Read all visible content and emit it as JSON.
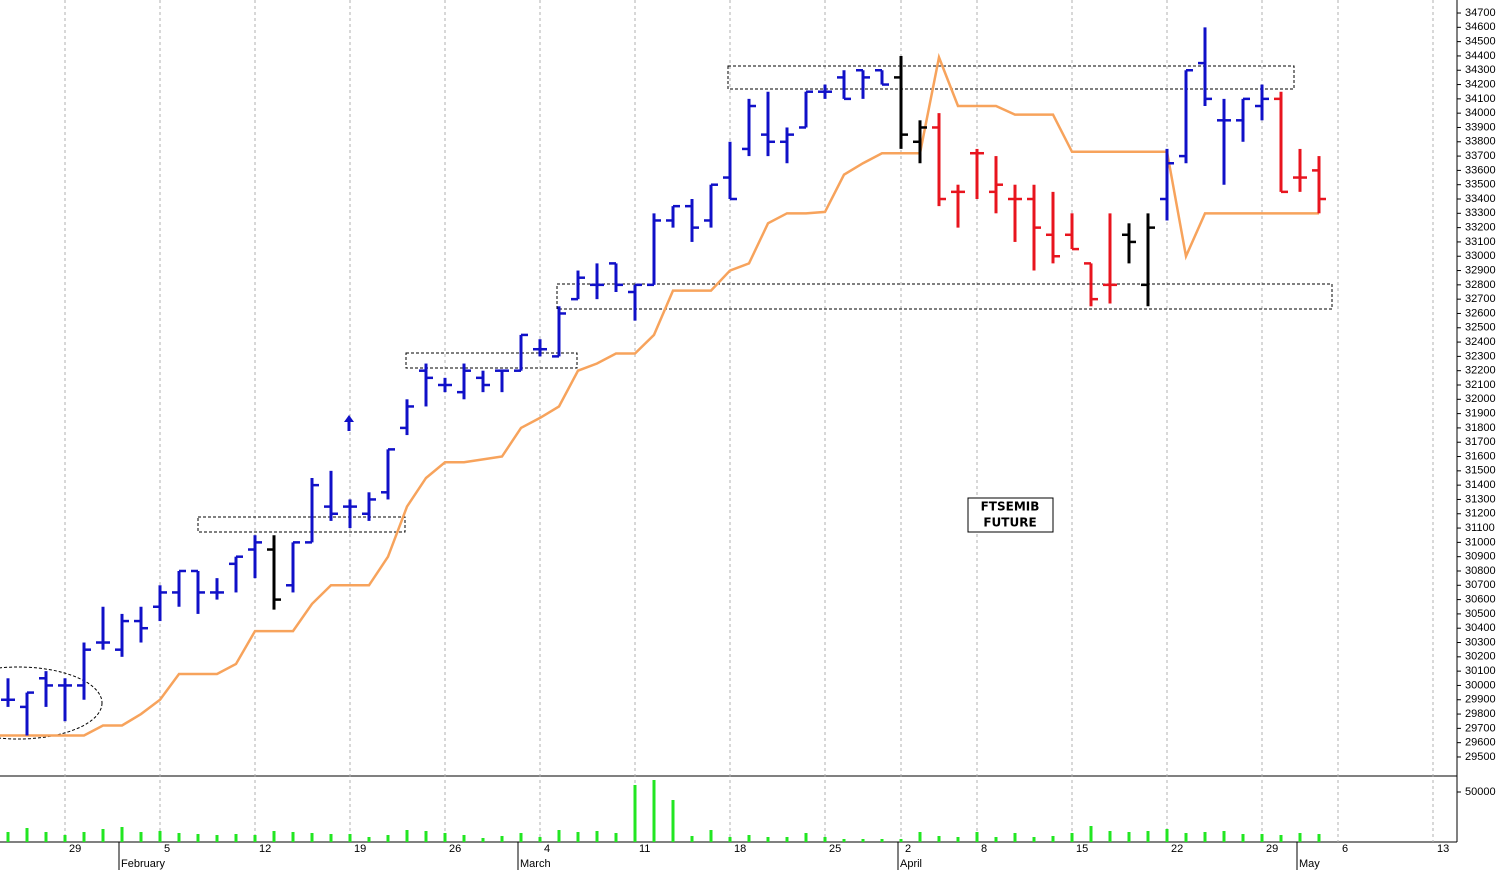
{
  "chart_data": [
    {
      "type": "ohlc",
      "annotation": [
        "FTSEMIB",
        "FUTURE"
      ],
      "categories": [
        null,
        null,
        null,
        "29",
        null,
        null,
        null,
        null,
        "5",
        null,
        null,
        null,
        null,
        "12",
        null,
        null,
        null,
        null,
        "19",
        null,
        null,
        null,
        null,
        "26",
        null,
        null,
        null,
        null,
        "4",
        null,
        null,
        null,
        null,
        "11",
        null,
        null,
        null,
        null,
        "18",
        null,
        null,
        null,
        null,
        "25",
        null,
        null,
        null,
        "2",
        null,
        null,
        null,
        "8",
        null,
        null,
        null,
        null,
        "15",
        null,
        null,
        null,
        null,
        "22",
        null,
        null,
        null,
        null,
        "29",
        null,
        null,
        null,
        "6",
        null,
        null,
        null,
        null,
        "13",
        null
      ],
      "month_labels": [
        null,
        null,
        null,
        null,
        null,
        null,
        "February",
        null,
        null,
        null,
        null,
        null,
        null,
        null,
        null,
        null,
        null,
        null,
        null,
        null,
        null,
        null,
        null,
        null,
        null,
        null,
        null,
        "March",
        null,
        null,
        null,
        null,
        null,
        null,
        null,
        null,
        null,
        null,
        null,
        null,
        null,
        null,
        null,
        null,
        null,
        null,
        null,
        "April",
        null,
        null,
        null,
        null,
        null,
        null,
        null,
        null,
        null,
        null,
        null,
        null,
        null,
        null,
        null,
        null,
        null,
        null,
        null,
        null,
        "May",
        null,
        null,
        null,
        null,
        null,
        null,
        null,
        null
      ],
      "open": [
        29900,
        29850,
        30050,
        30000,
        30000,
        30300,
        30250,
        30450,
        30550,
        30650,
        30800,
        30650,
        30850,
        30950,
        30950,
        30700,
        31000,
        31250,
        31250,
        31200,
        31350,
        31800,
        32200,
        32100,
        32050,
        32150,
        32200,
        32200,
        32350,
        32300,
        32700,
        32800,
        32950,
        32750,
        32800,
        33250,
        33350,
        33250,
        33550,
        33750,
        33850,
        33800,
        33900,
        34150,
        34250,
        34300,
        34300,
        34250,
        33800,
        33900,
        33450,
        33720,
        33450,
        33400,
        33400,
        33150,
        33150,
        32950,
        32800,
        33150,
        32800,
        33400,
        33700,
        34350,
        33950,
        33950,
        34050,
        34100,
        33550,
        33600,
        null,
        null,
        null,
        null,
        null,
        null,
        null
      ],
      "high": [
        30050,
        29950,
        30100,
        30050,
        30300,
        30550,
        30500,
        30550,
        30700,
        30800,
        30800,
        30750,
        30900,
        31050,
        31050,
        31000,
        31450,
        31500,
        31300,
        31350,
        31650,
        32000,
        32250,
        32150,
        32250,
        32200,
        32200,
        32450,
        32420,
        32650,
        32900,
        32950,
        32950,
        32800,
        33300,
        33350,
        33400,
        33500,
        33800,
        34100,
        34150,
        33900,
        34150,
        34200,
        34300,
        34300,
        34300,
        34400,
        33950,
        34000,
        33500,
        33750,
        33700,
        33500,
        33500,
        33450,
        33300,
        32950,
        33300,
        33230,
        33300,
        33750,
        34300,
        34600,
        34100,
        34100,
        34200,
        34150,
        33750,
        33700,
        null,
        null,
        null,
        null,
        null,
        null,
        null
      ],
      "low": [
        29850,
        29650,
        29850,
        29750,
        29900,
        30250,
        30200,
        30300,
        30450,
        30550,
        30500,
        30600,
        30650,
        30750,
        30530,
        30650,
        31000,
        31150,
        31100,
        31150,
        31300,
        31750,
        31950,
        32050,
        32000,
        32050,
        32050,
        32200,
        32300,
        32300,
        32700,
        32700,
        32750,
        32550,
        32800,
        33200,
        33100,
        33200,
        33400,
        33700,
        33700,
        33650,
        33900,
        34100,
        34100,
        34100,
        34200,
        33750,
        33650,
        33350,
        33200,
        33400,
        33300,
        33100,
        32900,
        32950,
        33050,
        32650,
        32670,
        32950,
        32650,
        33250,
        33650,
        34050,
        33500,
        33800,
        33950,
        33450,
        33450,
        33300,
        null,
        null,
        null,
        null,
        null,
        null,
        null
      ],
      "close": [
        29900,
        29950,
        30000,
        30000,
        30250,
        30300,
        30450,
        30400,
        30650,
        30800,
        30650,
        30650,
        30900,
        31000,
        30600,
        31000,
        31400,
        31200,
        31250,
        31300,
        31650,
        31950,
        32150,
        32100,
        32200,
        32100,
        32200,
        32450,
        32350,
        32600,
        32850,
        32800,
        32800,
        32800,
        33250,
        33350,
        33200,
        33500,
        33400,
        34050,
        33800,
        33850,
        34150,
        34150,
        34100,
        34250,
        34200,
        33850,
        33900,
        33400,
        33450,
        33720,
        33500,
        33400,
        33200,
        33000,
        33050,
        32700,
        32800,
        33100,
        33200,
        33650,
        34300,
        34100,
        33950,
        34100,
        34100,
        33450,
        33550,
        33400,
        null,
        null,
        null,
        null,
        null,
        null,
        null
      ],
      "bar_colors": [
        "#1010c8",
        "#1010c8",
        "#1010c8",
        "#1010c8",
        "#1010c8",
        "#1010c8",
        "#1010c8",
        "#1010c8",
        "#1010c8",
        "#1010c8",
        "#1010c8",
        "#1010c8",
        "#1010c8",
        "#1010c8",
        "#000000",
        "#1010c8",
        "#1010c8",
        "#1010c8",
        "#1010c8",
        "#1010c8",
        "#1010c8",
        "#1010c8",
        "#1010c8",
        "#1010c8",
        "#1010c8",
        "#1010c8",
        "#1010c8",
        "#1010c8",
        "#1010c8",
        "#1010c8",
        "#1010c8",
        "#1010c8",
        "#1010c8",
        "#1010c8",
        "#1010c8",
        "#1010c8",
        "#1010c8",
        "#1010c8",
        "#1010c8",
        "#1010c8",
        "#1010c8",
        "#1010c8",
        "#1010c8",
        "#1010c8",
        "#1010c8",
        "#1010c8",
        "#1010c8",
        "#000000",
        "#000000",
        "#e8141e",
        "#e8141e",
        "#e8141e",
        "#e8141e",
        "#e8141e",
        "#e8141e",
        "#e8141e",
        "#e8141e",
        "#e8141e",
        "#e8141e",
        "#000000",
        "#000000",
        "#1010c8",
        "#1010c8",
        "#1010c8",
        "#1010c8",
        "#1010c8",
        "#1010c8",
        "#e8141e",
        "#e8141e",
        "#e8141e",
        null,
        null,
        null,
        null,
        null,
        null,
        null
      ],
      "stop_line": {
        "color": "#f7a35c",
        "values": [
          29650,
          29650,
          29650,
          29650,
          29650,
          29720,
          29720,
          29800,
          29900,
          30080,
          30080,
          30080,
          30150,
          30380,
          30380,
          30380,
          30570,
          30700,
          30700,
          30700,
          30900,
          31250,
          31450,
          31560,
          31560,
          31580,
          31600,
          31800,
          31870,
          31950,
          32200,
          32250,
          32320,
          32320,
          32450,
          32760,
          32760,
          32760,
          32900,
          32950,
          33230,
          33300,
          33300,
          33310,
          33570,
          33650,
          33720,
          33720,
          33720,
          34390,
          34050,
          34050,
          34050,
          33990,
          33990,
          33990,
          33730,
          33730,
          33730,
          33730,
          33730,
          33730,
          33000,
          33300,
          33300,
          33300,
          33300,
          33300,
          33300,
          33300,
          null,
          null,
          null,
          null,
          null,
          null,
          null
        ]
      },
      "ylim": [
        29374,
        34791
      ],
      "yticks": [
        29500,
        29600,
        29700,
        29800,
        29900,
        30000,
        30100,
        30200,
        30300,
        30400,
        30500,
        30600,
        30700,
        30800,
        30900,
        31000,
        31100,
        31200,
        31300,
        31400,
        31500,
        31600,
        31700,
        31800,
        31900,
        32000,
        32100,
        32200,
        32300,
        32400,
        32500,
        32600,
        32700,
        32800,
        32900,
        33000,
        33100,
        33200,
        33300,
        33400,
        33500,
        33600,
        33700,
        33800,
        33900,
        34000,
        34100,
        34200,
        34300,
        34400,
        34500,
        34600,
        34700
      ]
    },
    {
      "type": "bar",
      "color": "#22e622",
      "values": [
        10000,
        14000,
        10000,
        7000,
        10000,
        13000,
        15000,
        10000,
        11000,
        9000,
        8000,
        7000,
        8000,
        7000,
        11000,
        10000,
        9000,
        8000,
        8000,
        5000,
        7000,
        12000,
        11000,
        9000,
        7000,
        4000,
        6000,
        9000,
        5000,
        12000,
        10000,
        11000,
        9000,
        57000,
        62000,
        42000,
        6000,
        12000,
        5000,
        7000,
        5000,
        5000,
        9000,
        5000,
        3000,
        3000,
        3000,
        3000,
        10000,
        6000,
        5000,
        10000,
        5000,
        9000,
        5000,
        6000,
        9000,
        16000,
        11000,
        10000,
        11000,
        13000,
        9000,
        10000,
        11000,
        8000,
        8000,
        7000,
        9000,
        8000,
        null,
        null,
        null,
        null,
        null,
        null,
        null
      ],
      "ylim": [
        0,
        65000
      ],
      "yticks": [
        50000
      ]
    }
  ]
}
